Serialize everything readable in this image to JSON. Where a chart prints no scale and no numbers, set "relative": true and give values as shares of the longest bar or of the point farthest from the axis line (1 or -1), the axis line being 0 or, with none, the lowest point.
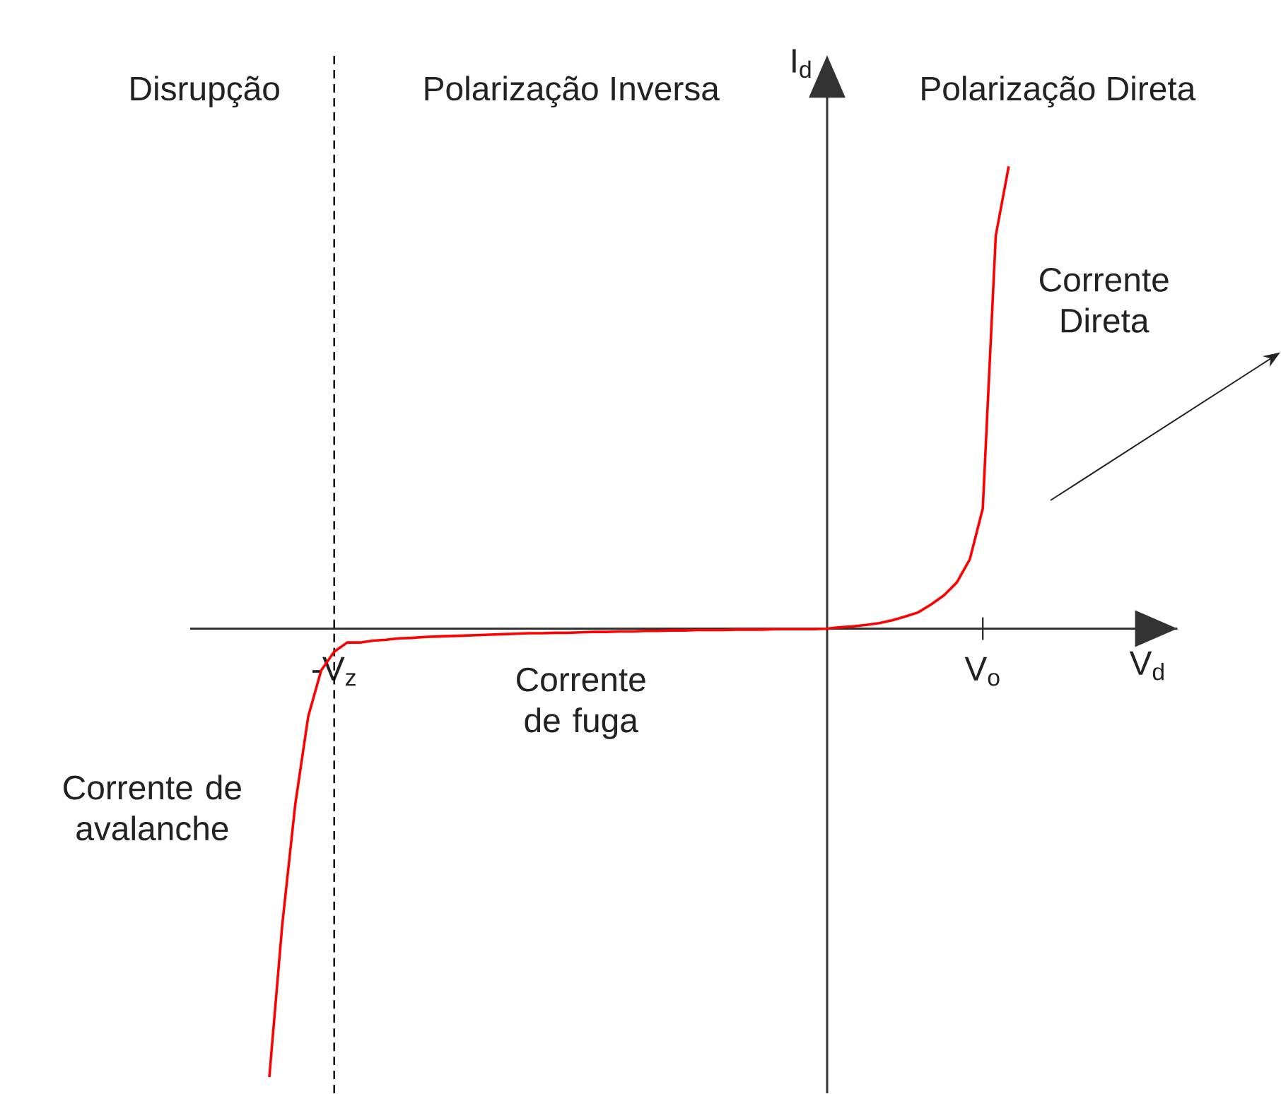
{
  "chart_data": {
    "type": "line",
    "relative": true,
    "xlabel": "V$_{d}$",
    "ylabel": "I$_{d}$",
    "categories": [
      null,
      null,
      null,
      null,
      null,
      "-V$_{z}$",
      null,
      null,
      null,
      null,
      null,
      null,
      null,
      null,
      null,
      null,
      null,
      null,
      null,
      null,
      null,
      null,
      null,
      null,
      null,
      null,
      null,
      null,
      null,
      null,
      null,
      null,
      null,
      null,
      null,
      null,
      null,
      null,
      null,
      null,
      null,
      null,
      null,
      null,
      null,
      null,
      null,
      null,
      null,
      null,
      null,
      null,
      null,
      null,
      null,
      "V$_{o}$",
      null,
      null
    ],
    "values": [
      -0.97,
      -0.64,
      -0.38,
      -0.19,
      -0.09,
      -0.05,
      -0.03,
      -0.03,
      -0.026,
      -0.024,
      -0.021,
      -0.02,
      -0.018,
      -0.017,
      -0.016,
      -0.015,
      -0.014,
      -0.013,
      -0.012,
      -0.011,
      -0.01,
      -0.01,
      -0.009,
      -0.009,
      -0.008,
      -0.007,
      -0.007,
      -0.006,
      -0.006,
      -0.005,
      -0.005,
      -0.004,
      -0.004,
      -0.003,
      -0.003,
      -0.003,
      -0.002,
      -0.002,
      -0.002,
      -0.001,
      -0.001,
      -0.001,
      -0.001,
      0,
      0.003,
      0.005,
      0.008,
      0.012,
      0.018,
      0.026,
      0.035,
      0.052,
      0.072,
      0.1,
      0.15,
      0.26,
      0.85,
      1.0
    ],
    "color": "#ff0000",
    "ref_lines": [
      {
        "axis": "x",
        "value": "-V$_{z}$",
        "line_style": "dashed",
        "color": "#000000"
      }
    ],
    "annotations": [
      "Disrupção",
      "Polarização Inversa",
      "Polarização Direta",
      "Corrente Direta",
      "Corrente de fuga",
      "Corrente de avalanche"
    ]
  }
}
